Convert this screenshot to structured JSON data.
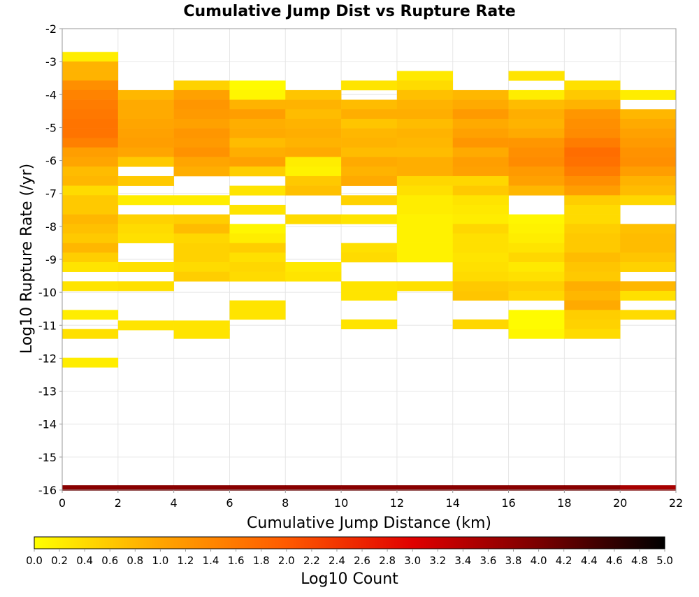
{
  "chart_data": {
    "type": "heatmap",
    "title": "Cumulative Jump Dist vs Rupture Rate",
    "xlabel": "Cumulative Jump Distance (km)",
    "ylabel": "Log10 Rupture Rate (/yr)",
    "xlim": [
      0,
      22
    ],
    "ylim": [
      -16,
      -2
    ],
    "xticks": [
      "0",
      "2",
      "4",
      "6",
      "8",
      "10",
      "12",
      "14",
      "16",
      "18",
      "20",
      "22"
    ],
    "yticks": [
      "-2",
      "-3",
      "-4",
      "-5",
      "-6",
      "-7",
      "-8",
      "-9",
      "-10",
      "-11",
      "-12",
      "-13",
      "-14",
      "-15",
      "-16"
    ],
    "x_bin_width": 2,
    "y_bin_height": 0.29,
    "grid": true,
    "colorbar": {
      "label": "Log10 Count",
      "range": [
        0,
        5
      ],
      "ticks": [
        "0.0",
        "0.2",
        "0.4",
        "0.6",
        "0.8",
        "1.0",
        "1.2",
        "1.4",
        "1.6",
        "1.8",
        "2.0",
        "2.2",
        "2.4",
        "2.6",
        "2.8",
        "3.0",
        "3.2",
        "3.4",
        "3.6",
        "3.8",
        "4.0",
        "4.2",
        "4.4",
        "4.6",
        "4.8",
        "5.0"
      ],
      "colors": [
        "#ffff00",
        "#ffa500",
        "#ff5a00",
        "#e00000",
        "#7a0000",
        "#000000"
      ]
    },
    "columns": [
      {
        "x": 0,
        "cells": [
          [
            -2.85,
            0.2
          ],
          [
            -3.14,
            0.85
          ],
          [
            -3.43,
            0.85
          ],
          [
            -3.72,
            1.3
          ],
          [
            -4.01,
            1.45
          ],
          [
            -4.3,
            1.55
          ],
          [
            -4.59,
            1.6
          ],
          [
            -4.88,
            1.65
          ],
          [
            -5.17,
            1.65
          ],
          [
            -5.46,
            1.5
          ],
          [
            -5.75,
            1.1
          ],
          [
            -6.04,
            1.0
          ],
          [
            -6.33,
            0.75
          ],
          [
            -6.62,
            0.8
          ],
          [
            -6.91,
            0.4
          ],
          [
            -7.2,
            0.6
          ],
          [
            -7.49,
            0.6
          ],
          [
            -7.78,
            0.8
          ],
          [
            -8.07,
            0.7
          ],
          [
            -8.36,
            0.6
          ],
          [
            -8.65,
            0.8
          ],
          [
            -8.94,
            0.55
          ],
          [
            -9.23,
            0.3
          ],
          [
            -9.81,
            0.3
          ],
          [
            -10.68,
            0.2
          ],
          [
            -11.26,
            0.35
          ],
          [
            -12.13,
            0.2
          ]
        ]
      },
      {
        "x": 2,
        "cells": [
          [
            -4.01,
            0.8
          ],
          [
            -4.3,
            0.95
          ],
          [
            -4.59,
            0.95
          ],
          [
            -4.88,
            1.0
          ],
          [
            -5.17,
            1.05
          ],
          [
            -5.46,
            1.1
          ],
          [
            -5.75,
            1.0
          ],
          [
            -6.04,
            0.6
          ],
          [
            -6.62,
            0.6
          ],
          [
            -7.2,
            0.2
          ],
          [
            -7.78,
            0.5
          ],
          [
            -8.07,
            0.4
          ],
          [
            -8.36,
            0.35
          ],
          [
            -9.23,
            0.35
          ],
          [
            -9.81,
            0.35
          ],
          [
            -11.0,
            0.3
          ]
        ]
      },
      {
        "x": 4,
        "cells": [
          [
            -3.72,
            0.5
          ],
          [
            -4.01,
            1.05
          ],
          [
            -4.3,
            1.2
          ],
          [
            -4.59,
            1.15
          ],
          [
            -4.88,
            1.05
          ],
          [
            -5.17,
            1.2
          ],
          [
            -5.46,
            1.15
          ],
          [
            -5.75,
            1.25
          ],
          [
            -6.04,
            1.0
          ],
          [
            -6.33,
            0.9
          ],
          [
            -7.2,
            0.2
          ],
          [
            -7.78,
            0.55
          ],
          [
            -8.07,
            0.75
          ],
          [
            -8.36,
            0.45
          ],
          [
            -8.65,
            0.5
          ],
          [
            -8.94,
            0.5
          ],
          [
            -9.23,
            0.4
          ],
          [
            -9.52,
            0.55
          ],
          [
            -11.0,
            0.3
          ],
          [
            -11.26,
            0.3
          ]
        ]
      },
      {
        "x": 6,
        "cells": [
          [
            -3.72,
            0.05
          ],
          [
            -4.01,
            0.1
          ],
          [
            -4.3,
            0.85
          ],
          [
            -4.59,
            1.1
          ],
          [
            -4.88,
            0.9
          ],
          [
            -5.17,
            0.95
          ],
          [
            -5.46,
            0.75
          ],
          [
            -5.75,
            0.9
          ],
          [
            -6.04,
            1.05
          ],
          [
            -6.33,
            0.55
          ],
          [
            -6.91,
            0.3
          ],
          [
            -7.49,
            0.3
          ],
          [
            -8.07,
            0.1
          ],
          [
            -8.36,
            0.2
          ],
          [
            -8.65,
            0.55
          ],
          [
            -8.94,
            0.35
          ],
          [
            -9.23,
            0.45
          ],
          [
            -9.52,
            0.4
          ],
          [
            -10.39,
            0.3
          ],
          [
            -10.68,
            0.3
          ]
        ]
      },
      {
        "x": 8,
        "cells": [
          [
            -4.01,
            0.65
          ],
          [
            -4.3,
            0.85
          ],
          [
            -4.59,
            0.75
          ],
          [
            -4.88,
            0.85
          ],
          [
            -5.17,
            0.9
          ],
          [
            -5.46,
            0.85
          ],
          [
            -5.75,
            0.95
          ],
          [
            -6.04,
            0.2
          ],
          [
            -6.33,
            0.15
          ],
          [
            -6.62,
            0.6
          ],
          [
            -6.91,
            0.7
          ],
          [
            -7.78,
            0.4
          ],
          [
            -9.23,
            0.25
          ],
          [
            -9.52,
            0.3
          ]
        ]
      },
      {
        "x": 10,
        "cells": [
          [
            -3.72,
            0.3
          ],
          [
            -4.3,
            0.75
          ],
          [
            -4.59,
            0.9
          ],
          [
            -4.88,
            0.65
          ],
          [
            -5.17,
            0.8
          ],
          [
            -5.46,
            0.85
          ],
          [
            -5.75,
            0.75
          ],
          [
            -6.04,
            0.95
          ],
          [
            -6.33,
            0.85
          ],
          [
            -6.62,
            0.95
          ],
          [
            -7.2,
            0.5
          ],
          [
            -7.78,
            0.3
          ],
          [
            -8.65,
            0.35
          ],
          [
            -8.94,
            0.4
          ],
          [
            -9.81,
            0.3
          ],
          [
            -10.1,
            0.3
          ],
          [
            -10.97,
            0.3
          ]
        ]
      },
      {
        "x": 12,
        "cells": [
          [
            -3.43,
            0.25
          ],
          [
            -3.72,
            0.4
          ],
          [
            -4.01,
            0.7
          ],
          [
            -4.3,
            0.85
          ],
          [
            -4.59,
            0.9
          ],
          [
            -4.88,
            0.75
          ],
          [
            -5.17,
            0.85
          ],
          [
            -5.46,
            0.8
          ],
          [
            -5.75,
            0.75
          ],
          [
            -6.04,
            0.9
          ],
          [
            -6.33,
            0.9
          ],
          [
            -6.62,
            0.45
          ],
          [
            -6.91,
            0.35
          ],
          [
            -7.2,
            0.2
          ],
          [
            -7.49,
            0.2
          ],
          [
            -7.78,
            0.15
          ],
          [
            -8.07,
            0.15
          ],
          [
            -8.36,
            0.15
          ],
          [
            -8.65,
            0.15
          ],
          [
            -8.94,
            0.15
          ],
          [
            -9.81,
            0.35
          ]
        ]
      },
      {
        "x": 14,
        "cells": [
          [
            -4.01,
            0.8
          ],
          [
            -4.3,
            0.95
          ],
          [
            -4.59,
            1.15
          ],
          [
            -4.88,
            0.95
          ],
          [
            -5.17,
            1.05
          ],
          [
            -5.46,
            1.2
          ],
          [
            -5.75,
            0.95
          ],
          [
            -6.04,
            1.1
          ],
          [
            -6.33,
            1.05
          ],
          [
            -6.62,
            0.45
          ],
          [
            -6.91,
            0.6
          ],
          [
            -7.2,
            0.3
          ],
          [
            -7.49,
            0.25
          ],
          [
            -7.78,
            0.2
          ],
          [
            -8.07,
            0.45
          ],
          [
            -8.36,
            0.35
          ],
          [
            -8.65,
            0.35
          ],
          [
            -8.94,
            0.3
          ],
          [
            -9.23,
            0.35
          ],
          [
            -9.52,
            0.4
          ],
          [
            -9.81,
            0.6
          ],
          [
            -10.1,
            0.65
          ],
          [
            -10.97,
            0.45
          ]
        ]
      },
      {
        "x": 16,
        "cells": [
          [
            -3.43,
            0.3
          ],
          [
            -4.01,
            0.2
          ],
          [
            -4.3,
            0.75
          ],
          [
            -4.59,
            0.9
          ],
          [
            -4.88,
            0.85
          ],
          [
            -5.17,
            0.95
          ],
          [
            -5.46,
            1.2
          ],
          [
            -5.75,
            1.3
          ],
          [
            -6.04,
            1.35
          ],
          [
            -6.33,
            1.15
          ],
          [
            -6.62,
            1.05
          ],
          [
            -6.91,
            0.8
          ],
          [
            -7.78,
            0.1
          ],
          [
            -8.07,
            0.15
          ],
          [
            -8.36,
            0.2
          ],
          [
            -8.65,
            0.3
          ],
          [
            -8.94,
            0.45
          ],
          [
            -9.23,
            0.25
          ],
          [
            -9.52,
            0.35
          ],
          [
            -9.81,
            0.55
          ],
          [
            -10.1,
            0.45
          ],
          [
            -10.68,
            0.05
          ],
          [
            -10.97,
            0.05
          ],
          [
            -11.26,
            0.1
          ]
        ]
      },
      {
        "x": 18,
        "cells": [
          [
            -3.72,
            0.35
          ],
          [
            -4.01,
            0.6
          ],
          [
            -4.3,
            0.85
          ],
          [
            -4.59,
            1.2
          ],
          [
            -4.88,
            1.3
          ],
          [
            -5.17,
            1.35
          ],
          [
            -5.46,
            1.55
          ],
          [
            -5.75,
            1.75
          ],
          [
            -6.04,
            1.7
          ],
          [
            -6.33,
            1.55
          ],
          [
            -6.62,
            1.3
          ],
          [
            -6.91,
            1.1
          ],
          [
            -7.2,
            0.55
          ],
          [
            -7.49,
            0.4
          ],
          [
            -7.78,
            0.4
          ],
          [
            -8.07,
            0.55
          ],
          [
            -8.36,
            0.6
          ],
          [
            -8.65,
            0.6
          ],
          [
            -8.94,
            0.75
          ],
          [
            -9.23,
            0.65
          ],
          [
            -9.52,
            0.6
          ],
          [
            -9.81,
            0.9
          ],
          [
            -10.1,
            0.8
          ],
          [
            -10.39,
            0.95
          ],
          [
            -10.68,
            0.55
          ],
          [
            -10.97,
            0.5
          ],
          [
            -11.26,
            0.4
          ]
        ]
      },
      {
        "x": 20,
        "cells": [
          [
            -4.01,
            0.2
          ],
          [
            -4.59,
            0.8
          ],
          [
            -4.88,
            0.95
          ],
          [
            -5.17,
            1.05
          ],
          [
            -5.46,
            1.15
          ],
          [
            -5.75,
            1.25
          ],
          [
            -6.04,
            1.3
          ],
          [
            -6.33,
            1.1
          ],
          [
            -6.62,
            0.85
          ],
          [
            -6.91,
            0.75
          ],
          [
            -7.2,
            0.45
          ],
          [
            -8.07,
            0.7
          ],
          [
            -8.36,
            0.75
          ],
          [
            -8.65,
            0.75
          ],
          [
            -8.94,
            0.65
          ],
          [
            -9.23,
            0.5
          ],
          [
            -9.81,
            0.8
          ],
          [
            -10.1,
            0.35
          ],
          [
            -10.68,
            0.4
          ]
        ]
      }
    ],
    "floor_band": {
      "y": -16,
      "values": [
        3.85,
        3.85,
        3.85,
        3.85,
        3.85,
        3.85,
        3.85,
        3.85,
        3.85,
        3.85,
        3.55
      ]
    }
  }
}
